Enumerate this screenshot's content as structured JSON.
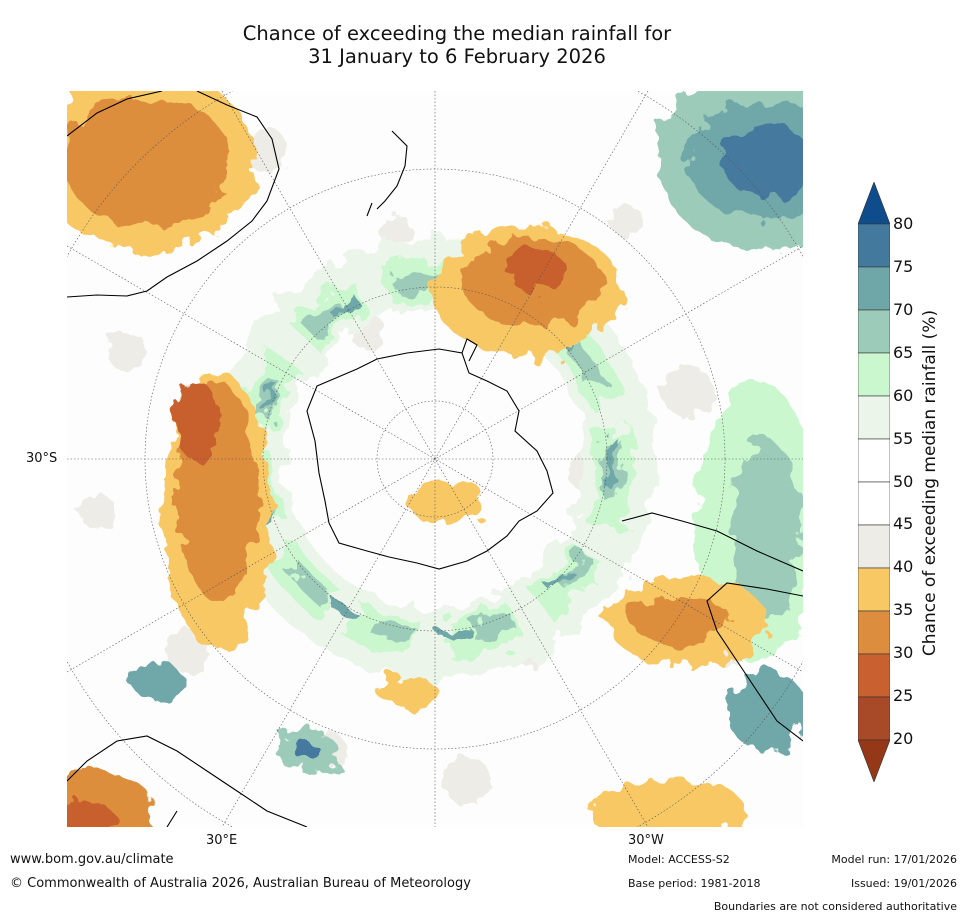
{
  "title": {
    "line1": "Chance of exceeding the median rainfall for",
    "line2": "31 January to 6 February 2026"
  },
  "map": {
    "projection": "south-polar",
    "lat_label": "30°S",
    "lon_labels": [
      "30°E",
      "30°W"
    ],
    "palette": {
      "20-25": "#a84a27",
      "25-30": "#c8612f",
      "30-35": "#dc8e3e",
      "35-40": "#f8c865",
      "40-45": "#eeece6",
      "45-55": "#ffffff",
      "55-60": "#ebf5ea",
      "60-65": "#cbf7cf",
      "65-70": "#9cccb9",
      "70-75": "#6fa7a8",
      "75-80": "#44799e",
      "80+": "#0e4c8c",
      "<20": "#943817",
      "coastline": "#000000",
      "border": "#808080"
    }
  },
  "colorbar": {
    "label": "Chance of exceeding median rainfall (%)",
    "ticks": [
      "80",
      "75",
      "70",
      "65",
      "60",
      "55",
      "50",
      "45",
      "40",
      "35",
      "30",
      "25",
      "20"
    ],
    "colors": [
      "#44799e",
      "#6fa7a8",
      "#9cccb9",
      "#cbf7cf",
      "#ebf5ea",
      "#ffffff",
      "#ffffff",
      "#eeece6",
      "#f8c865",
      "#dc8e3e",
      "#c8612f",
      "#a84a27"
    ],
    "top_arrow_color": "#0e4c8c",
    "bottom_arrow_color": "#943817"
  },
  "footer": {
    "website": "www.bom.gov.au/climate",
    "copyright": "© Commonwealth of Australia 2026, Australian Bureau of Meteorology",
    "model": "Model: ACCESS-S2",
    "base_period": "Base period: 1981-2018",
    "model_run": "Model run: 17/01/2026",
    "issued": "Issued: 19/01/2026",
    "disclaimer": "Boundaries are not considered authoritative"
  }
}
